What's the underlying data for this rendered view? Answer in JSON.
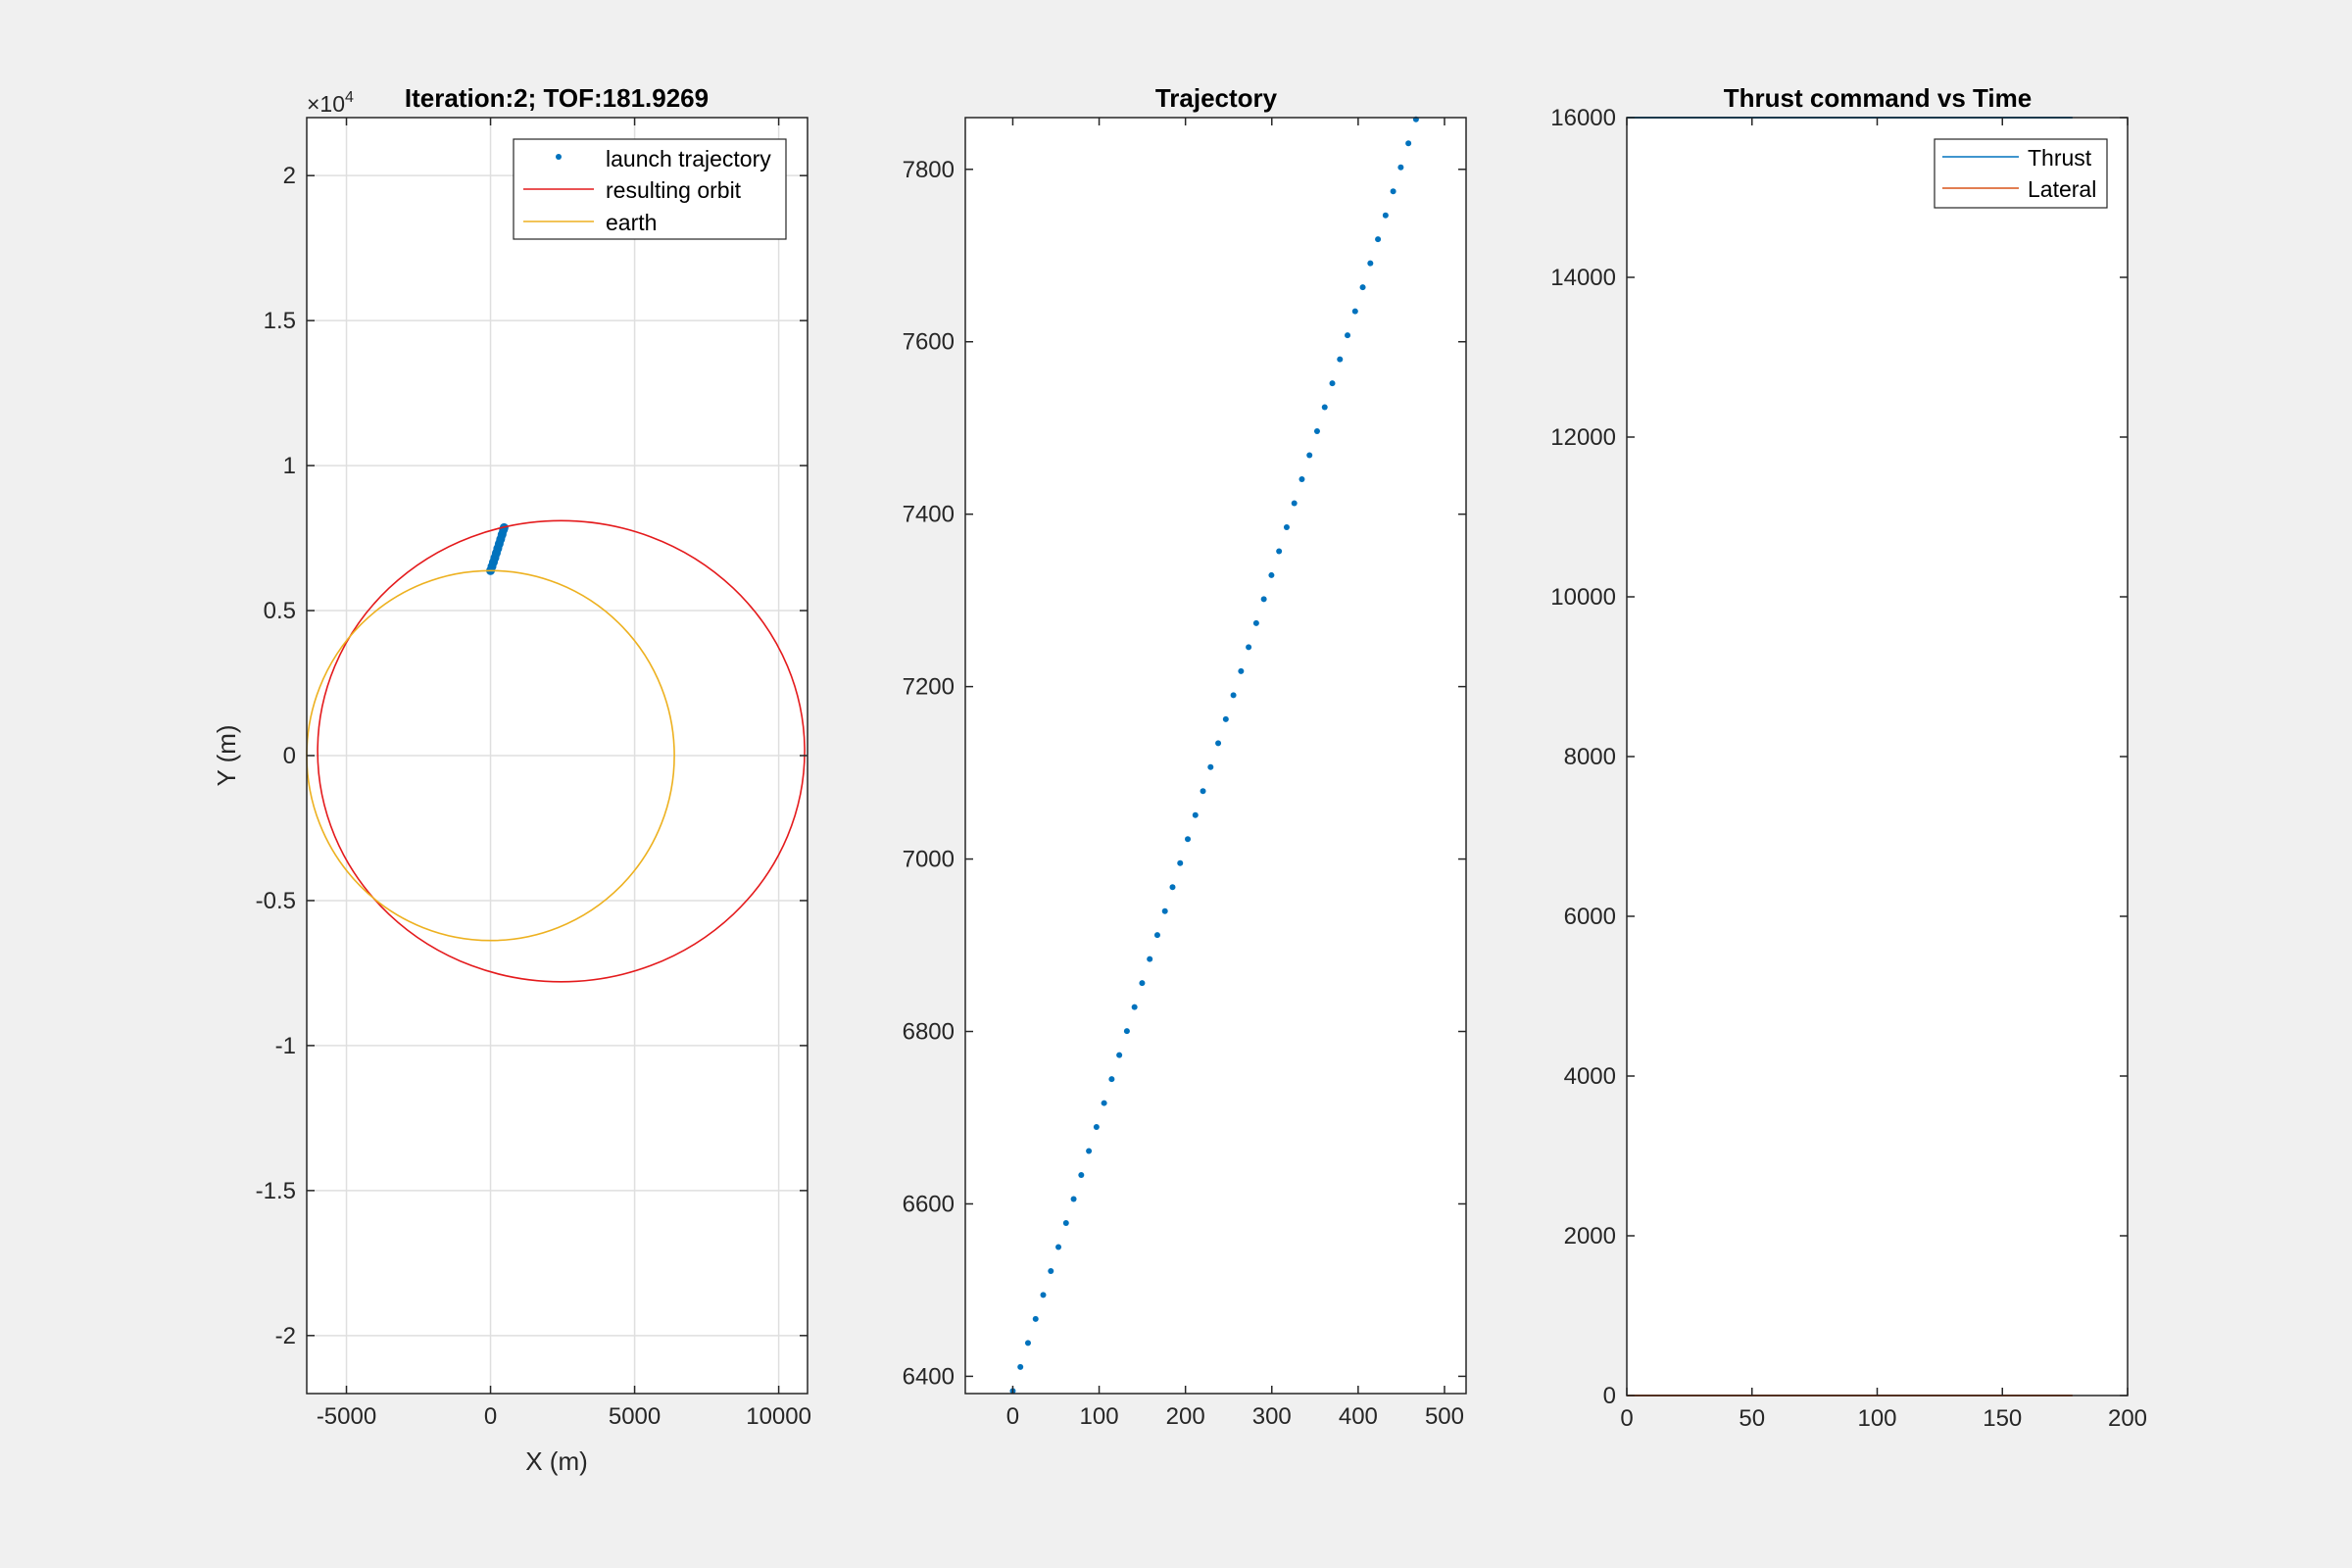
{
  "figure": {
    "background": "#f0f0f0",
    "axes_background": "#ffffff"
  },
  "colors": {
    "blue": "#0072bd",
    "red": "#e41a1c",
    "orange": "#edb120",
    "lateral": "#d95319",
    "grid": "#dfdfdf",
    "axis": "#262626"
  },
  "chart_data": [
    {
      "type": "scatter",
      "title": "Iteration:2; TOF:181.9269",
      "xlabel": "X (m)",
      "ylabel": "Y (m)",
      "xlim": [
        -6378,
        11000
      ],
      "ylim": [
        -22000,
        22000
      ],
      "xticks": [
        -5000,
        0,
        5000,
        10000
      ],
      "xtick_labels": [
        "-5000",
        "0",
        "5000",
        "10000"
      ],
      "yticks": [
        -20000,
        -15000,
        -10000,
        -5000,
        0,
        5000,
        10000,
        15000,
        20000
      ],
      "ytick_labels": [
        "-2",
        "-1.5",
        "-1",
        "-0.5",
        "0",
        "0.5",
        "1",
        "1.5",
        "2"
      ],
      "y_exponent_label": "×10",
      "y_exponent_power": "4",
      "grid": true,
      "legend": {
        "location": "top-right",
        "entries": [
          "launch trajectory",
          "resulting orbit",
          "earth"
        ]
      },
      "series": [
        {
          "name": "launch trajectory",
          "kind": "markers",
          "color": "#0072bd",
          "x": [
            0,
            50,
            100,
            150,
            200,
            250,
            300,
            350,
            400,
            450,
            470
          ],
          "y": [
            6378,
            6520,
            6670,
            6820,
            6980,
            7140,
            7300,
            7460,
            7620,
            7790,
            7860
          ]
        },
        {
          "name": "resulting orbit",
          "kind": "ellipse",
          "color": "#e41a1c",
          "center": [
            2450,
            150
          ],
          "radius_x": 8450,
          "radius_y": 7950
        },
        {
          "name": "earth",
          "kind": "circle",
          "color": "#edb120",
          "center": [
            0,
            0
          ],
          "radius": 6378
        }
      ]
    },
    {
      "type": "scatter",
      "title": "Trajectory",
      "xlim": [
        -55,
        525
      ],
      "ylim": [
        6380,
        7860
      ],
      "xticks": [
        0,
        100,
        200,
        300,
        400,
        500
      ],
      "xtick_labels": [
        "0",
        "100",
        "200",
        "300",
        "400",
        "500"
      ],
      "yticks": [
        6400,
        6600,
        6800,
        7000,
        7200,
        7400,
        7600,
        7800
      ],
      "ytick_labels": [
        "6400",
        "6600",
        "6800",
        "7000",
        "7200",
        "7400",
        "7600",
        "7800"
      ],
      "grid": false,
      "series": [
        {
          "kind": "markers",
          "color": "#0072bd",
          "x_start": 0,
          "x_end": 467,
          "y_start": 6383,
          "y_end": 7858,
          "count": 54
        }
      ]
    },
    {
      "type": "line",
      "title": "Thrust command vs Time",
      "xlim": [
        0,
        200
      ],
      "ylim": [
        0,
        16000
      ],
      "xticks": [
        0,
        50,
        100,
        150,
        200
      ],
      "xtick_labels": [
        "0",
        "50",
        "100",
        "150",
        "200"
      ],
      "yticks": [
        0,
        2000,
        4000,
        6000,
        8000,
        10000,
        12000,
        14000,
        16000
      ],
      "ytick_labels": [
        "0",
        "2000",
        "4000",
        "6000",
        "8000",
        "10000",
        "12000",
        "14000",
        "16000"
      ],
      "grid": false,
      "legend": {
        "location": "top-right",
        "entries": [
          "Thrust",
          "Lateral"
        ]
      },
      "series": [
        {
          "name": "Thrust",
          "color": "#0072bd",
          "x": [
            0,
            178
          ],
          "y": [
            16000,
            16000
          ]
        },
        {
          "name": "Lateral",
          "color": "#d95319",
          "x": [
            0,
            178
          ],
          "y": [
            0,
            0
          ]
        }
      ]
    }
  ]
}
